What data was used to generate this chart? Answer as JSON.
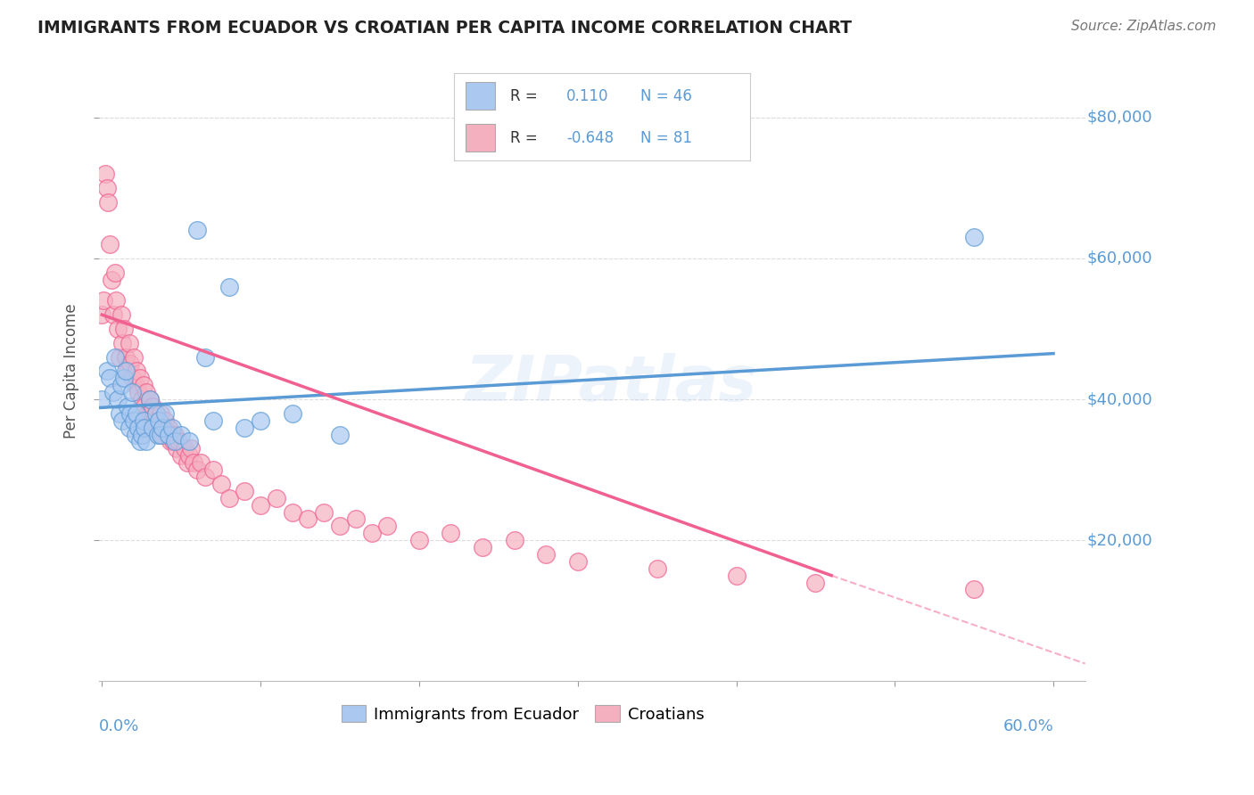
{
  "title": "IMMIGRANTS FROM ECUADOR VS CROATIAN PER CAPITA INCOME CORRELATION CHART",
  "source": "Source: ZipAtlas.com",
  "ylabel": "Per Capita Income",
  "ytick_labels": [
    "$20,000",
    "$40,000",
    "$60,000",
    "$80,000"
  ],
  "ytick_vals": [
    20000,
    40000,
    60000,
    80000
  ],
  "ylim": [
    0,
    88000
  ],
  "xlim": [
    -0.002,
    0.62
  ],
  "blue_color": "#5b9bd5",
  "pink_color": "#f06090",
  "blue_fill": "#aac8f0",
  "pink_fill": "#f5b0c0",
  "title_color": "#222222",
  "axis_label_color": "#5b9bd5",
  "watermark": "ZIPatlas",
  "ecuador_scatter": [
    [
      0.0,
      40000
    ],
    [
      0.003,
      44000
    ],
    [
      0.005,
      43000
    ],
    [
      0.007,
      41000
    ],
    [
      0.008,
      46000
    ],
    [
      0.01,
      40000
    ],
    [
      0.011,
      38000
    ],
    [
      0.012,
      42000
    ],
    [
      0.013,
      37000
    ],
    [
      0.014,
      43000
    ],
    [
      0.015,
      44000
    ],
    [
      0.016,
      39000
    ],
    [
      0.017,
      36000
    ],
    [
      0.018,
      38000
    ],
    [
      0.019,
      41000
    ],
    [
      0.02,
      37000
    ],
    [
      0.021,
      35000
    ],
    [
      0.022,
      38000
    ],
    [
      0.023,
      36000
    ],
    [
      0.024,
      34000
    ],
    [
      0.025,
      35000
    ],
    [
      0.026,
      37000
    ],
    [
      0.027,
      36000
    ],
    [
      0.028,
      34000
    ],
    [
      0.03,
      40000
    ],
    [
      0.032,
      36000
    ],
    [
      0.034,
      38000
    ],
    [
      0.035,
      35000
    ],
    [
      0.036,
      37000
    ],
    [
      0.037,
      35000
    ],
    [
      0.038,
      36000
    ],
    [
      0.04,
      38000
    ],
    [
      0.042,
      35000
    ],
    [
      0.044,
      36000
    ],
    [
      0.046,
      34000
    ],
    [
      0.05,
      35000
    ],
    [
      0.055,
      34000
    ],
    [
      0.06,
      64000
    ],
    [
      0.065,
      46000
    ],
    [
      0.07,
      37000
    ],
    [
      0.08,
      56000
    ],
    [
      0.09,
      36000
    ],
    [
      0.1,
      37000
    ],
    [
      0.12,
      38000
    ],
    [
      0.15,
      35000
    ],
    [
      0.55,
      63000
    ]
  ],
  "croatian_scatter": [
    [
      0.0,
      52000
    ],
    [
      0.001,
      54000
    ],
    [
      0.002,
      72000
    ],
    [
      0.003,
      70000
    ],
    [
      0.004,
      68000
    ],
    [
      0.005,
      62000
    ],
    [
      0.006,
      57000
    ],
    [
      0.007,
      52000
    ],
    [
      0.008,
      58000
    ],
    [
      0.009,
      54000
    ],
    [
      0.01,
      50000
    ],
    [
      0.011,
      46000
    ],
    [
      0.012,
      52000
    ],
    [
      0.013,
      48000
    ],
    [
      0.014,
      50000
    ],
    [
      0.015,
      46000
    ],
    [
      0.016,
      44000
    ],
    [
      0.017,
      48000
    ],
    [
      0.018,
      45000
    ],
    [
      0.019,
      43000
    ],
    [
      0.02,
      46000
    ],
    [
      0.021,
      42000
    ],
    [
      0.022,
      44000
    ],
    [
      0.023,
      41000
    ],
    [
      0.024,
      43000
    ],
    [
      0.025,
      40000
    ],
    [
      0.026,
      42000
    ],
    [
      0.027,
      39000
    ],
    [
      0.028,
      41000
    ],
    [
      0.029,
      38000
    ],
    [
      0.03,
      40000
    ],
    [
      0.031,
      38000
    ],
    [
      0.032,
      39000
    ],
    [
      0.033,
      37000
    ],
    [
      0.034,
      38000
    ],
    [
      0.035,
      36000
    ],
    [
      0.036,
      37000
    ],
    [
      0.037,
      38000
    ],
    [
      0.038,
      35000
    ],
    [
      0.039,
      36000
    ],
    [
      0.04,
      37000
    ],
    [
      0.041,
      35000
    ],
    [
      0.042,
      36000
    ],
    [
      0.043,
      34000
    ],
    [
      0.044,
      35000
    ],
    [
      0.045,
      34000
    ],
    [
      0.046,
      35000
    ],
    [
      0.047,
      33000
    ],
    [
      0.048,
      34000
    ],
    [
      0.05,
      32000
    ],
    [
      0.052,
      33000
    ],
    [
      0.054,
      31000
    ],
    [
      0.055,
      32000
    ],
    [
      0.056,
      33000
    ],
    [
      0.058,
      31000
    ],
    [
      0.06,
      30000
    ],
    [
      0.062,
      31000
    ],
    [
      0.065,
      29000
    ],
    [
      0.07,
      30000
    ],
    [
      0.075,
      28000
    ],
    [
      0.08,
      26000
    ],
    [
      0.09,
      27000
    ],
    [
      0.1,
      25000
    ],
    [
      0.11,
      26000
    ],
    [
      0.12,
      24000
    ],
    [
      0.13,
      23000
    ],
    [
      0.14,
      24000
    ],
    [
      0.15,
      22000
    ],
    [
      0.16,
      23000
    ],
    [
      0.17,
      21000
    ],
    [
      0.18,
      22000
    ],
    [
      0.2,
      20000
    ],
    [
      0.22,
      21000
    ],
    [
      0.24,
      19000
    ],
    [
      0.26,
      20000
    ],
    [
      0.28,
      18000
    ],
    [
      0.3,
      17000
    ],
    [
      0.35,
      16000
    ],
    [
      0.4,
      15000
    ],
    [
      0.45,
      14000
    ],
    [
      0.55,
      13000
    ]
  ],
  "ecuador_line": {
    "x0": -0.002,
    "y0": 38800,
    "x1": 0.6,
    "y1": 46500
  },
  "croatian_line_solid": {
    "x0": 0.0,
    "y0": 52000,
    "x1": 0.46,
    "y1": 15000
  },
  "croatian_line_dashed": {
    "x0": 0.46,
    "y0": 15000,
    "x1": 0.62,
    "y1": 2500
  },
  "grid_color": "#dddddd",
  "background_color": "#ffffff",
  "legend_R1": "0.110",
  "legend_N1": "46",
  "legend_R2": "-0.648",
  "legend_N2": "81"
}
